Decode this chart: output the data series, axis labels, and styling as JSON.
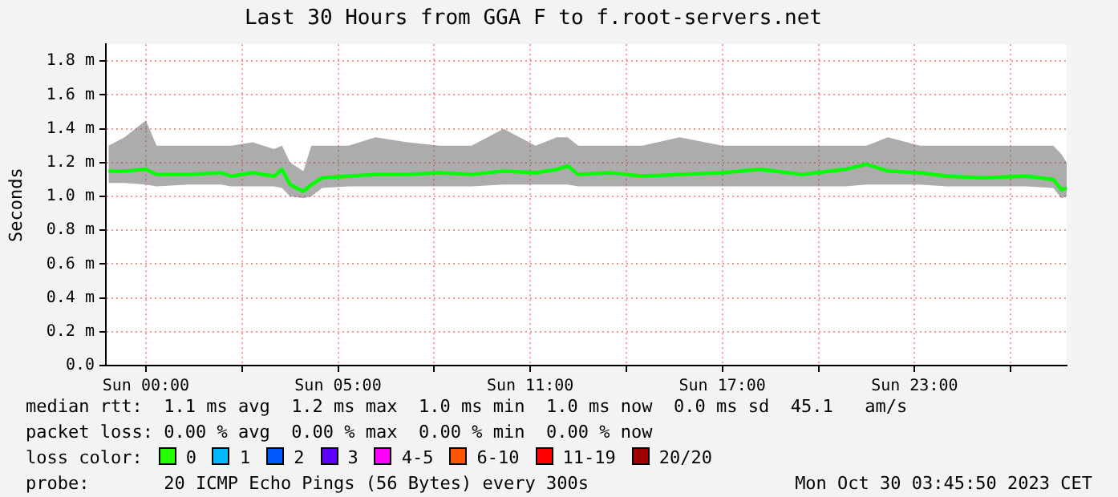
{
  "chart_data": {
    "type": "line",
    "title": "Last 30 Hours from GGA F to f.root-servers.net",
    "ylabel": "Seconds",
    "x": [
      "2023-10-28T21:50",
      "2023-10-28T22:20",
      "2023-10-28T23:00",
      "2023-10-28T23:20",
      "2023-10-29T00:20",
      "2023-10-29T01:20",
      "2023-10-29T01:40",
      "2023-10-29T02:20",
      "2023-10-29T03:00",
      "2023-10-29T03:15",
      "2023-10-29T03:30",
      "2023-10-29T03:55",
      "2023-10-29T04:10",
      "2023-10-29T04:30",
      "2023-10-29T05:20",
      "2023-10-29T06:10",
      "2023-10-29T07:10",
      "2023-10-29T08:10",
      "2023-10-29T09:10",
      "2023-10-29T10:10",
      "2023-10-29T11:10",
      "2023-10-29T11:50",
      "2023-10-29T12:10",
      "2023-10-29T12:30",
      "2023-10-29T13:30",
      "2023-10-29T14:30",
      "2023-10-29T15:40",
      "2023-10-29T17:00",
      "2023-10-29T18:10",
      "2023-10-29T19:30",
      "2023-10-29T20:50",
      "2023-10-29T21:30",
      "2023-10-29T22:10",
      "2023-10-29T23:10",
      "2023-10-30T00:00",
      "2023-10-30T01:10",
      "2023-10-30T02:30",
      "2023-10-30T03:20",
      "2023-10-30T03:35",
      "2023-10-30T03:45"
    ],
    "series": [
      {
        "color": "#00ff00",
        "values": [
          1.15,
          1.15,
          1.16,
          1.13,
          1.13,
          1.14,
          1.12,
          1.14,
          1.12,
          1.16,
          1.07,
          1.03,
          1.07,
          1.11,
          1.12,
          1.13,
          1.13,
          1.14,
          1.13,
          1.15,
          1.14,
          1.16,
          1.18,
          1.13,
          1.14,
          1.12,
          1.13,
          1.14,
          1.16,
          1.13,
          1.16,
          1.19,
          1.15,
          1.14,
          1.12,
          1.11,
          1.12,
          1.1,
          1.04,
          1.05
        ],
        "lower": [
          1.08,
          1.08,
          1.07,
          1.06,
          1.07,
          1.07,
          1.06,
          1.06,
          1.06,
          1.05,
          1.0,
          0.99,
          1.0,
          1.05,
          1.06,
          1.06,
          1.06,
          1.06,
          1.06,
          1.07,
          1.07,
          1.07,
          1.07,
          1.06,
          1.06,
          1.06,
          1.06,
          1.06,
          1.06,
          1.06,
          1.06,
          1.07,
          1.07,
          1.07,
          1.06,
          1.06,
          1.06,
          1.05,
          0.99,
          1.0
        ],
        "upper": [
          1.3,
          1.35,
          1.45,
          1.3,
          1.3,
          1.3,
          1.3,
          1.32,
          1.28,
          1.3,
          1.2,
          1.15,
          1.3,
          1.3,
          1.3,
          1.35,
          1.32,
          1.3,
          1.3,
          1.4,
          1.3,
          1.35,
          1.35,
          1.3,
          1.3,
          1.3,
          1.35,
          1.3,
          1.3,
          1.3,
          1.3,
          1.3,
          1.35,
          1.3,
          1.3,
          1.3,
          1.3,
          1.3,
          1.25,
          1.2
        ]
      }
    ],
    "xlim": [
      "2023-10-28T21:45",
      "2023-10-30T03:45"
    ],
    "xticks": [
      {
        "value": "2023-10-28T23:00",
        "label": "Sun 00:00"
      },
      {
        "value": "2023-10-29T02:00",
        "label": null
      },
      {
        "value": "2023-10-29T05:00",
        "label": "Sun 05:00"
      },
      {
        "value": "2023-10-29T08:00",
        "label": null
      },
      {
        "value": "2023-10-29T11:00",
        "label": "Sun 11:00"
      },
      {
        "value": "2023-10-29T14:00",
        "label": null
      },
      {
        "value": "2023-10-29T17:00",
        "label": "Sun 17:00"
      },
      {
        "value": "2023-10-29T20:00",
        "label": null
      },
      {
        "value": "2023-10-29T23:00",
        "label": "Sun 23:00"
      },
      {
        "value": "2023-10-30T02:00",
        "label": null
      }
    ],
    "ylim": [
      0,
      1.9
    ],
    "yticks": [
      {
        "value": 0,
        "label": "0.0"
      },
      {
        "value": 0.2,
        "label": "0.2 m"
      },
      {
        "value": 0.4,
        "label": "0.4 m"
      },
      {
        "value": 0.6,
        "label": "0.6 m"
      },
      {
        "value": 0.8,
        "label": "0.8 m"
      },
      {
        "value": 1.0,
        "label": "1.0 m"
      },
      {
        "value": 1.2,
        "label": "1.2 m"
      },
      {
        "value": 1.4,
        "label": "1.4 m"
      },
      {
        "value": 1.6,
        "label": "1.6 m"
      },
      {
        "value": 1.8,
        "label": "1.8 m"
      }
    ],
    "grid": true,
    "legend": false,
    "marker": "none",
    "line_style": "solid",
    "annotations": [
      "median rtt:  1.1 ms avg  1.2 ms max  1.0 ms min  1.0 ms now  0.0 ms sd  45.1   am/s",
      "packet loss: 0.00 % avg  0.00 % max  0.00 % min  0.00 % now",
      "loss color:",
      "0",
      "1",
      "2",
      "3",
      "4-5",
      "6-10",
      "11-19",
      "20/20",
      "probe:       20 ICMP Echo Pings (56 Bytes) every 300s",
      "Mon Oct 30 03:45:50 2023 CET"
    ]
  }
}
